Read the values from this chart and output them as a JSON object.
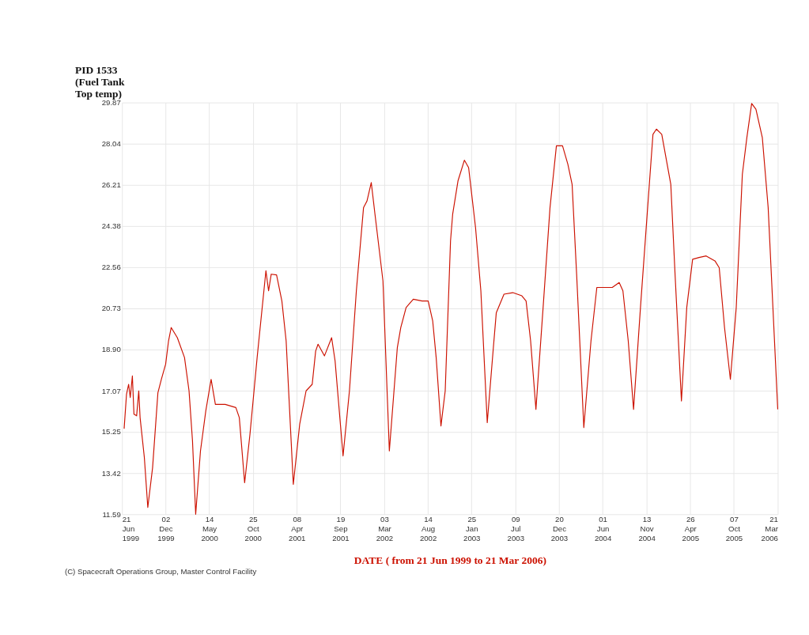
{
  "chart_data": {
    "type": "line",
    "ylabel": "PID 1533 (Fuel Tank Top temp)",
    "xlabel": "DATE ( from 21 Jun 1999 to 21 Mar 2006)",
    "annotations": [
      "(C) Spacecraft Operations Group, Master Control Facility"
    ],
    "xlim": [
      "1999-06-21",
      "2006-03-21"
    ],
    "xticks": [
      {
        "value": "1999-06-21",
        "label": "21 Jun 1999"
      },
      {
        "value": "1999-12-02",
        "label": "02 Dec 1999"
      },
      {
        "value": "2000-05-14",
        "label": "14 May 2000"
      },
      {
        "value": "2000-10-25",
        "label": "25 Oct 2000"
      },
      {
        "value": "2001-04-08",
        "label": "08 Apr 2001"
      },
      {
        "value": "2001-09-19",
        "label": "19 Sep 2001"
      },
      {
        "value": "2002-03-03",
        "label": "03 Mar 2002"
      },
      {
        "value": "2002-08-14",
        "label": "14 Aug 2002"
      },
      {
        "value": "2003-01-25",
        "label": "25 Jan 2003"
      },
      {
        "value": "2003-07-09",
        "label": "09 Jul 2003"
      },
      {
        "value": "2003-12-20",
        "label": "20 Dec 2003"
      },
      {
        "value": "2004-06-01",
        "label": "01 Jun 2004"
      },
      {
        "value": "2004-11-13",
        "label": "13 Nov 2004"
      },
      {
        "value": "2005-04-26",
        "label": "26 Apr 2005"
      },
      {
        "value": "2005-10-07",
        "label": "07 Oct 2005"
      },
      {
        "value": "2006-03-21",
        "label": "21 Mar 2006"
      }
    ],
    "ylim": [
      11.59,
      29.87
    ],
    "yticks": [
      11.59,
      13.42,
      15.25,
      17.07,
      {
        "value": 18.9,
        "label": "18.90"
      },
      20.73,
      22.56,
      24.38,
      26.21,
      28.04,
      29.87
    ],
    "grid": true,
    "marker": "none",
    "line_style": "solid",
    "legend": false,
    "x": [
      "1999-06-29",
      "1999-07-08",
      "1999-07-16",
      "1999-07-22",
      "1999-07-30",
      "1999-08-05",
      "1999-08-15",
      "1999-08-23",
      "1999-08-28",
      "1999-09-13",
      "1999-09-26",
      "1999-10-14",
      "1999-11-03",
      "1999-11-16",
      "1999-12-02",
      "1999-12-13",
      "1999-12-23",
      "2000-01-15",
      "2000-02-11",
      "2000-02-28",
      "2000-03-12",
      "2000-03-24",
      "2000-04-11",
      "2000-05-01",
      "2000-05-21",
      "2000-06-06",
      "2000-07-13",
      "2000-08-22",
      "2000-09-04",
      "2000-09-24",
      "2000-10-14",
      "2000-11-10",
      "2000-12-13",
      "2000-12-23",
      "2001-01-02",
      "2001-01-22",
      "2001-02-11",
      "2001-02-27",
      "2001-03-26",
      "2001-04-19",
      "2001-05-13",
      "2001-06-05",
      "2001-06-18",
      "2001-06-27",
      "2001-07-21",
      "2001-08-17",
      "2001-08-30",
      "2001-09-29",
      "2001-10-23",
      "2001-11-18",
      "2001-12-15",
      "2001-12-28",
      "2002-01-13",
      "2002-01-27",
      "2002-02-26",
      "2002-03-22",
      "2002-04-21",
      "2002-05-04",
      "2002-05-24",
      "2002-06-20",
      "2002-07-23",
      "2002-08-15",
      "2002-09-01",
      "2002-09-14",
      "2002-10-02",
      "2002-10-18",
      "2002-11-07",
      "2002-11-15",
      "2002-12-05",
      "2002-12-29",
      "2003-01-14",
      "2003-02-09",
      "2003-03-01",
      "2003-03-25",
      "2003-04-17",
      "2003-04-28",
      "2003-05-27",
      "2003-06-29",
      "2003-08-02",
      "2003-08-18",
      "2003-09-04",
      "2003-09-24",
      "2003-10-21",
      "2003-11-16",
      "2003-12-10",
      "2004-01-02",
      "2004-01-22",
      "2004-02-07",
      "2004-02-24",
      "2004-03-22",
      "2004-04-18",
      "2004-05-10",
      "2004-06-03",
      "2004-07-07",
      "2004-08-02",
      "2004-08-16",
      "2004-09-05",
      "2004-09-25",
      "2004-10-21",
      "2004-11-17",
      "2004-12-07",
      "2004-12-20",
      "2005-01-09",
      "2005-02-12",
      "2005-02-28",
      "2005-03-24",
      "2005-04-13",
      "2005-05-05",
      "2005-05-29",
      "2005-06-25",
      "2005-07-28",
      "2005-08-13",
      "2005-09-02",
      "2005-09-24",
      "2005-10-16",
      "2005-11-08",
      "2005-11-25",
      "2005-12-13",
      "2005-12-29",
      "2006-01-22",
      "2006-02-13",
      "2006-03-21"
    ],
    "series": [
      {
        "color": "#cc1100",
        "values": [
          15.39,
          16.92,
          17.36,
          16.77,
          17.73,
          16.03,
          15.96,
          17.07,
          15.88,
          14.11,
          11.89,
          13.66,
          16.99,
          17.58,
          18.25,
          19.29,
          19.88,
          19.43,
          18.55,
          17.07,
          14.85,
          11.59,
          14.4,
          16.18,
          17.58,
          16.47,
          16.47,
          16.33,
          15.88,
          12.99,
          15.14,
          18.55,
          22.4,
          21.51,
          22.25,
          22.22,
          21.06,
          19.29,
          12.92,
          15.59,
          17.07,
          17.36,
          18.84,
          19.14,
          18.62,
          19.43,
          18.4,
          14.18,
          17.07,
          21.51,
          25.21,
          25.5,
          26.32,
          24.91,
          21.95,
          14.4,
          18.99,
          19.88,
          20.77,
          21.14,
          21.06,
          21.06,
          20.17,
          18.55,
          15.51,
          17.07,
          23.73,
          24.91,
          26.39,
          27.31,
          26.98,
          24.32,
          21.51,
          15.66,
          18.99,
          20.54,
          21.36,
          21.43,
          21.29,
          21.06,
          19.29,
          16.25,
          20.77,
          25.21,
          27.95,
          27.95,
          27.13,
          26.24,
          22.25,
          15.44,
          19.29,
          21.66,
          21.66,
          21.66,
          21.88,
          21.51,
          19.29,
          16.25,
          20.77,
          25.21,
          28.46,
          28.69,
          28.46,
          26.24,
          22.25,
          16.62,
          20.77,
          22.91,
          22.99,
          23.06,
          22.84,
          22.54,
          19.88,
          17.58,
          20.77,
          26.69,
          28.32,
          29.83,
          29.57,
          28.32,
          25.21,
          16.25
        ]
      }
    ]
  }
}
